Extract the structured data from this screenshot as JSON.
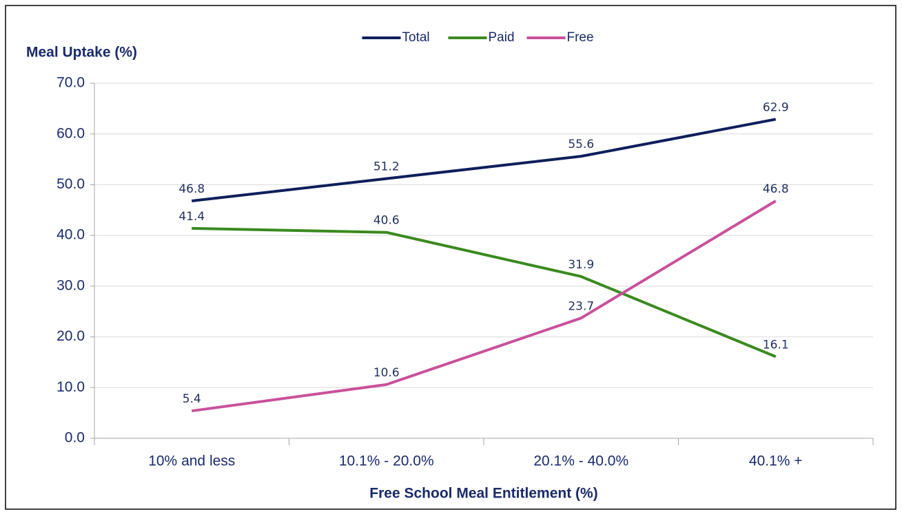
{
  "chart_data": {
    "type": "line",
    "y_axis_title": "Meal Uptake (%)",
    "x_axis_title": "Free School Meal Entitlement (%)",
    "categories": [
      "10% and less",
      "10.1% - 20.0%",
      "20.1% - 40.0%",
      "40.1% +"
    ],
    "series": [
      {
        "name": "Total",
        "color": "#0f1f5c",
        "values": [
          46.8,
          51.2,
          55.6,
          62.9
        ]
      },
      {
        "name": "Paid",
        "color": "#3a8a1f",
        "values": [
          41.4,
          40.6,
          31.9,
          16.1
        ]
      },
      {
        "name": "Free",
        "color": "#c9519b",
        "values": [
          5.4,
          10.6,
          23.7,
          46.8
        ]
      }
    ],
    "ylim": [
      0,
      70
    ],
    "yticks": [
      {
        "value": 0,
        "label": "0.0"
      },
      {
        "value": 10,
        "label": "10.0"
      },
      {
        "value": 20,
        "label": "20.0"
      },
      {
        "value": 30,
        "label": "30.0"
      },
      {
        "value": 40,
        "label": "40.0"
      },
      {
        "value": 50,
        "label": "50.0"
      },
      {
        "value": 60,
        "label": "60.0"
      },
      {
        "value": 70,
        "label": "70.0"
      }
    ],
    "grid": true,
    "legend": "top"
  }
}
